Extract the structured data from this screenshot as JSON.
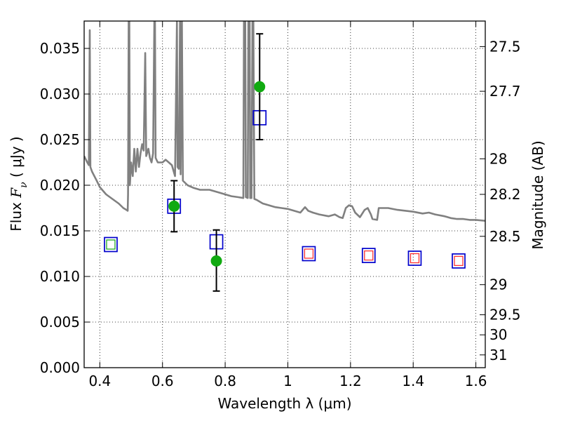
{
  "chart_data": {
    "type": "scatter",
    "xlabel": "Wavelength  λ (μm)",
    "ylabel": "Flux  F_ν  ( μJy )",
    "ylabel_parts": {
      "prefix": "Flux  ",
      "symbol": "F",
      "subscript": "ν",
      "suffix": "  ( μJy )"
    },
    "y2label": "Magnitude (AB)",
    "xlim": [
      0.35,
      1.63
    ],
    "ylim": [
      0.0,
      0.038
    ],
    "grid": true,
    "x_ticks": [
      {
        "value": 0.4,
        "label": "0.4"
      },
      {
        "value": 0.6,
        "label": "0.6"
      },
      {
        "value": 0.8,
        "label": "0.8"
      },
      {
        "value": 1.0,
        "label": "1"
      },
      {
        "value": 1.2,
        "label": "1.2"
      },
      {
        "value": 1.4,
        "label": "1.4"
      },
      {
        "value": 1.6,
        "label": "1.6"
      }
    ],
    "y_ticks": [
      {
        "value": 0.0,
        "label": "0.000"
      },
      {
        "value": 0.005,
        "label": "0.005"
      },
      {
        "value": 0.01,
        "label": "0.010"
      },
      {
        "value": 0.015,
        "label": "0.015"
      },
      {
        "value": 0.02,
        "label": "0.020"
      },
      {
        "value": 0.025,
        "label": "0.025"
      },
      {
        "value": 0.03,
        "label": "0.030"
      },
      {
        "value": 0.035,
        "label": "0.035"
      }
    ],
    "y2_ticks": [
      {
        "flux": 0.0352,
        "label": "27.5"
      },
      {
        "flux": 0.0303,
        "label": "27.7"
      },
      {
        "flux": 0.0229,
        "label": "28"
      },
      {
        "flux": 0.019,
        "label": "28.2"
      },
      {
        "flux": 0.0144,
        "label": "28.5"
      },
      {
        "flux": 0.0091,
        "label": "29"
      },
      {
        "flux": 0.0058,
        "label": "29.5"
      },
      {
        "flux": 0.0036,
        "label": "30"
      },
      {
        "flux": 0.0014,
        "label": "31"
      }
    ],
    "series": [
      {
        "kind": "spectrum",
        "color": "#808080",
        "points": [
          [
            0.35,
            0.0232
          ],
          [
            0.36,
            0.0225
          ],
          [
            0.365,
            0.0222
          ],
          [
            0.368,
            0.037
          ],
          [
            0.37,
            0.022
          ],
          [
            0.375,
            0.0215
          ],
          [
            0.39,
            0.0205
          ],
          [
            0.4,
            0.0198
          ],
          [
            0.42,
            0.019
          ],
          [
            0.44,
            0.0185
          ],
          [
            0.46,
            0.018
          ],
          [
            0.475,
            0.0175
          ],
          [
            0.485,
            0.0173
          ],
          [
            0.489,
            0.0172
          ],
          [
            0.49,
            0.019
          ],
          [
            0.492,
            0.038
          ],
          [
            0.494,
            0.038
          ],
          [
            0.496,
            0.02
          ],
          [
            0.5,
            0.0225
          ],
          [
            0.505,
            0.021
          ],
          [
            0.51,
            0.024
          ],
          [
            0.515,
            0.0215
          ],
          [
            0.52,
            0.024
          ],
          [
            0.525,
            0.022
          ],
          [
            0.53,
            0.0235
          ],
          [
            0.535,
            0.0245
          ],
          [
            0.54,
            0.0238
          ],
          [
            0.545,
            0.0345
          ],
          [
            0.548,
            0.0232
          ],
          [
            0.555,
            0.024
          ],
          [
            0.56,
            0.023
          ],
          [
            0.565,
            0.0225
          ],
          [
            0.57,
            0.0235
          ],
          [
            0.574,
            0.038
          ],
          [
            0.576,
            0.038
          ],
          [
            0.578,
            0.023
          ],
          [
            0.585,
            0.0225
          ],
          [
            0.6,
            0.0225
          ],
          [
            0.61,
            0.0228
          ],
          [
            0.62,
            0.0225
          ],
          [
            0.63,
            0.0222
          ],
          [
            0.64,
            0.021
          ],
          [
            0.646,
            0.038
          ],
          [
            0.648,
            0.022
          ],
          [
            0.652,
            0.0218
          ],
          [
            0.656,
            0.038
          ],
          [
            0.658,
            0.0212
          ],
          [
            0.662,
            0.038
          ],
          [
            0.665,
            0.0205
          ],
          [
            0.68,
            0.02
          ],
          [
            0.7,
            0.0197
          ],
          [
            0.72,
            0.0195
          ],
          [
            0.75,
            0.0195
          ],
          [
            0.78,
            0.0192
          ],
          [
            0.8,
            0.019
          ],
          [
            0.82,
            0.0188
          ],
          [
            0.84,
            0.0187
          ],
          [
            0.858,
            0.0186
          ],
          [
            0.86,
            0.038
          ],
          [
            0.864,
            0.038
          ],
          [
            0.866,
            0.0187
          ],
          [
            0.872,
            0.0186
          ],
          [
            0.874,
            0.038
          ],
          [
            0.878,
            0.038
          ],
          [
            0.88,
            0.0186
          ],
          [
            0.884,
            0.0186
          ],
          [
            0.887,
            0.038
          ],
          [
            0.89,
            0.038
          ],
          [
            0.893,
            0.0185
          ],
          [
            0.9,
            0.0184
          ],
          [
            0.92,
            0.018
          ],
          [
            0.94,
            0.0178
          ],
          [
            0.96,
            0.0176
          ],
          [
            0.98,
            0.0175
          ],
          [
            1.0,
            0.0174
          ],
          [
            1.02,
            0.0172
          ],
          [
            1.04,
            0.017
          ],
          [
            1.055,
            0.0176
          ],
          [
            1.065,
            0.0172
          ],
          [
            1.08,
            0.017
          ],
          [
            1.1,
            0.0168
          ],
          [
            1.13,
            0.0166
          ],
          [
            1.15,
            0.0168
          ],
          [
            1.165,
            0.0165
          ],
          [
            1.175,
            0.0164
          ],
          [
            1.185,
            0.0175
          ],
          [
            1.195,
            0.0178
          ],
          [
            1.205,
            0.0177
          ],
          [
            1.215,
            0.017
          ],
          [
            1.23,
            0.0165
          ],
          [
            1.245,
            0.0173
          ],
          [
            1.255,
            0.0175
          ],
          [
            1.265,
            0.0168
          ],
          [
            1.27,
            0.0163
          ],
          [
            1.285,
            0.0162
          ],
          [
            1.29,
            0.0175
          ],
          [
            1.3,
            0.0175
          ],
          [
            1.32,
            0.0175
          ],
          [
            1.35,
            0.0173
          ],
          [
            1.4,
            0.0171
          ],
          [
            1.43,
            0.0169
          ],
          [
            1.45,
            0.017
          ],
          [
            1.47,
            0.0168
          ],
          [
            1.5,
            0.0166
          ],
          [
            1.52,
            0.0164
          ],
          [
            1.54,
            0.0163
          ],
          [
            1.56,
            0.0163
          ],
          [
            1.58,
            0.0162
          ],
          [
            1.6,
            0.0162
          ],
          [
            1.63,
            0.0161
          ]
        ]
      },
      {
        "kind": "model-boxes",
        "stroke": "#0000cc",
        "points": [
          [
            0.435,
            0.0135
          ],
          [
            0.637,
            0.0177
          ],
          [
            0.772,
            0.0138
          ],
          [
            0.91,
            0.0274
          ],
          [
            1.067,
            0.0125
          ],
          [
            1.258,
            0.0123
          ],
          [
            1.405,
            0.012
          ],
          [
            1.545,
            0.0117
          ]
        ]
      },
      {
        "kind": "inner-boxes",
        "points": [
          {
            "x": 0.435,
            "y": 0.0135,
            "color": "#22aa22"
          },
          {
            "x": 1.067,
            "y": 0.0125,
            "color": "#ff3333"
          },
          {
            "x": 1.258,
            "y": 0.0123,
            "color": "#ff3333"
          },
          {
            "x": 1.405,
            "y": 0.012,
            "color": "#ff3333"
          },
          {
            "x": 1.545,
            "y": 0.0117,
            "color": "#ff3333"
          }
        ]
      },
      {
        "kind": "observed",
        "color": "#11aa11",
        "points": [
          {
            "x": 0.637,
            "y": 0.0177,
            "lo": 0.0149,
            "hi": 0.0205
          },
          {
            "x": 0.772,
            "y": 0.0117,
            "lo": 0.0084,
            "hi": 0.0151
          },
          {
            "x": 0.91,
            "y": 0.0308,
            "lo": 0.025,
            "hi": 0.0366
          }
        ]
      }
    ]
  }
}
